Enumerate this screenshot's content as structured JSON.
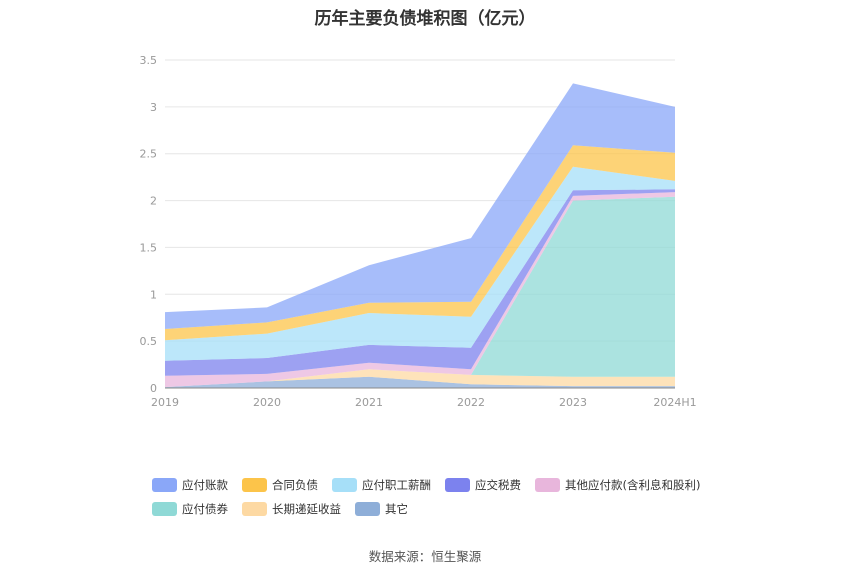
{
  "chart_data": {
    "type": "area",
    "stacked": true,
    "title": "历年主要负债堆积图（亿元）",
    "categories": [
      "2019",
      "2020",
      "2021",
      "2022",
      "2023",
      "2024H1"
    ],
    "ylim": [
      0,
      3.5
    ],
    "yticks": [
      "0",
      "0.5",
      "1",
      "1.5",
      "2",
      "2.5",
      "3",
      "3.5"
    ],
    "grid": true,
    "legend_position": "bottom",
    "series": [
      {
        "name": "其它",
        "color": "#8eaed8",
        "values": [
          0.01,
          0.07,
          0.12,
          0.04,
          0.02,
          0.02
        ]
      },
      {
        "name": "长期递延收益",
        "color": "#fdd9a3",
        "values": [
          0.0,
          0.0,
          0.08,
          0.1,
          0.1,
          0.1
        ]
      },
      {
        "name": "应付债券",
        "color": "#8fd9d6",
        "values": [
          0.0,
          0.0,
          0.0,
          0.0,
          1.88,
          1.92
        ]
      },
      {
        "name": "其他应付款(含利息和股利)",
        "color": "#e8b6dc",
        "values": [
          0.12,
          0.08,
          0.07,
          0.06,
          0.05,
          0.05
        ]
      },
      {
        "name": "应交税费",
        "color": "#7c82ee",
        "values": [
          0.16,
          0.17,
          0.19,
          0.23,
          0.06,
          0.03
        ]
      },
      {
        "name": "应付职工薪酬",
        "color": "#a6dff8",
        "values": [
          0.22,
          0.26,
          0.34,
          0.33,
          0.25,
          0.09
        ]
      },
      {
        "name": "合同负债",
        "color": "#fcc44a",
        "values": [
          0.12,
          0.12,
          0.11,
          0.16,
          0.23,
          0.3
        ]
      },
      {
        "name": "应付账款",
        "color": "#8aa7f8",
        "values": [
          0.18,
          0.16,
          0.4,
          0.68,
          0.66,
          0.49
        ]
      }
    ]
  },
  "legend": {
    "row1": [
      {
        "label": "应付账款",
        "color": "#8aa7f8"
      },
      {
        "label": "合同负债",
        "color": "#fcc44a"
      },
      {
        "label": "应付职工薪酬",
        "color": "#a6dff8"
      },
      {
        "label": "应交税费",
        "color": "#7c82ee"
      },
      {
        "label": "其他应付款(含利息和股利)",
        "color": "#e8b6dc"
      }
    ],
    "row2": [
      {
        "label": "应付债券",
        "color": "#8fd9d6"
      },
      {
        "label": "长期递延收益",
        "color": "#fdd9a3"
      },
      {
        "label": "其它",
        "color": "#8eaed8"
      }
    ]
  },
  "source": "数据来源：恒生聚源"
}
